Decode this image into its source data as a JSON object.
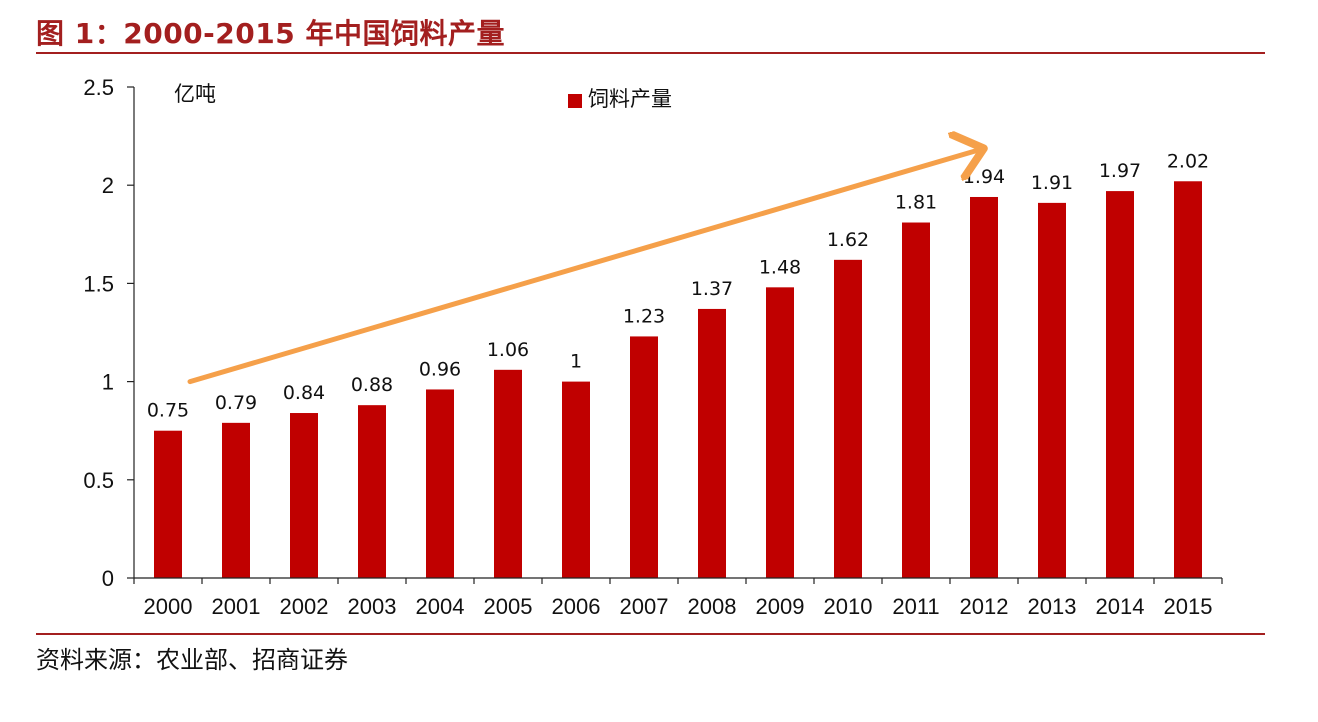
{
  "figure": {
    "title": "图 1：2000-2015 年中国饲料产量",
    "source": "资料来源：农业部、招商证券"
  },
  "colors": {
    "bar": "#c00000",
    "arrow": "#f5a04a",
    "rule": "#a31f1f"
  },
  "chart_data": {
    "type": "bar",
    "title": "图 1：2000-2015 年中国饲料产量",
    "unit": "亿吨",
    "ylabel": "亿吨",
    "xlabel": "",
    "ylim": [
      0,
      2.5
    ],
    "yticks": [
      "0",
      "0.5",
      "1",
      "1.5",
      "2",
      "2.5"
    ],
    "categories": [
      "2000",
      "2001",
      "2002",
      "2003",
      "2004",
      "2005",
      "2006",
      "2007",
      "2008",
      "2009",
      "2010",
      "2011",
      "2012",
      "2013",
      "2014",
      "2015"
    ],
    "series": [
      {
        "name": "饲料产量",
        "values": [
          0.75,
          0.79,
          0.84,
          0.88,
          0.96,
          1.06,
          1,
          1.23,
          1.37,
          1.48,
          1.62,
          1.81,
          1.94,
          1.91,
          1.97,
          2.02
        ],
        "labels": [
          "0.75",
          "0.79",
          "0.84",
          "0.88",
          "0.96",
          "1.06",
          "1",
          "1.23",
          "1.37",
          "1.48",
          "1.62",
          "1.81",
          "1.94",
          "1.91",
          "1.97",
          "2.02"
        ]
      }
    ],
    "legend": {
      "position": "top-center"
    },
    "grid": false,
    "annotation": {
      "type": "trend-arrow",
      "from_category": "2000",
      "from_value": 1.0,
      "to_category": "2012",
      "to_value": 2.18
    }
  }
}
